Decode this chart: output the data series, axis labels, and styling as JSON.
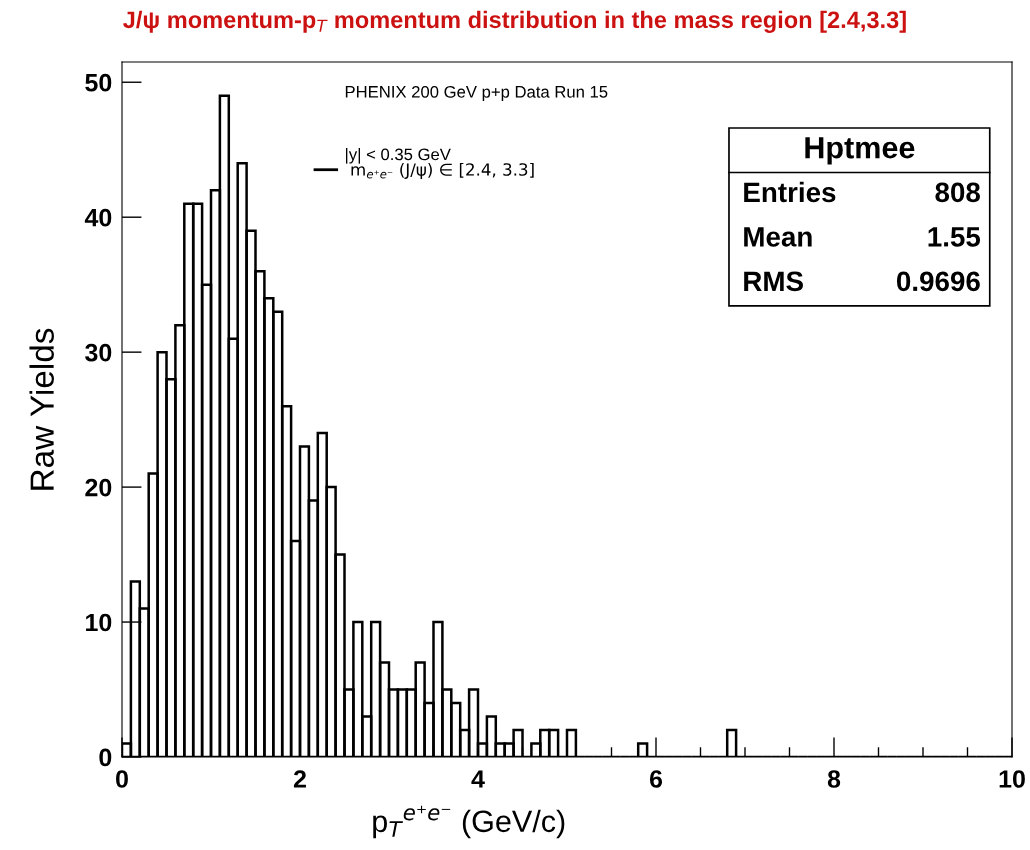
{
  "chart_data": {
    "type": "histogram",
    "title": "J/ψ momentum-p$_{T}$ momentum distribution in the mass region [2.4,3.3]",
    "xlabel": "p$_{T}$$^{e⁺e⁻}$ (GeV/c)",
    "ylabel": "Raw Yields",
    "bins": [
      0,
      0.1,
      0.2,
      0.3,
      0.4,
      0.5,
      0.6,
      0.7,
      0.8,
      0.9,
      1.0,
      1.1,
      1.2,
      1.3,
      1.4,
      1.5,
      1.6,
      1.7,
      1.8,
      1.9,
      2.0,
      2.1,
      2.2,
      2.3,
      2.4,
      2.5,
      2.6,
      2.7,
      2.8,
      2.9,
      3.0,
      3.1,
      3.2,
      3.3,
      3.4,
      3.5,
      3.6,
      3.7,
      3.8,
      3.9,
      4.0,
      4.1,
      4.2,
      4.3,
      4.4,
      4.5,
      4.6,
      4.7,
      4.8,
      4.9,
      5.0,
      5.1,
      5.2,
      5.3,
      5.4,
      5.5,
      5.6,
      5.7,
      5.8,
      5.9,
      6.0,
      6.1,
      6.2,
      6.3,
      6.4,
      6.5,
      6.6,
      6.7,
      6.8,
      6.9,
      7.0,
      7.1,
      7.2,
      7.3,
      7.4,
      7.5,
      7.6,
      7.7,
      7.8,
      7.9,
      8.0,
      8.1,
      8.2,
      8.3,
      8.4,
      8.5,
      8.6,
      8.7,
      8.8,
      8.9,
      9.0,
      9.1,
      9.2,
      9.3,
      9.4,
      9.5,
      9.6,
      9.7,
      9.8,
      9.9,
      10.0
    ],
    "series": [
      {
        "name": "m$_{e⁺e⁻}$ (J/ψ) ∈ [2.4, 3.3]",
        "color": "#000000",
        "values": [
          1,
          13,
          11,
          21,
          30,
          28,
          32,
          41,
          41,
          35,
          42,
          49,
          31,
          44,
          39,
          36,
          34,
          33,
          26,
          16,
          23,
          19,
          24,
          20,
          15,
          5,
          10,
          3,
          10,
          7,
          5,
          5,
          5,
          7,
          4,
          10,
          5,
          4,
          2,
          5,
          1,
          3,
          1,
          1,
          2,
          0,
          1,
          2,
          2,
          0,
          2,
          0,
          0,
          0,
          0,
          0,
          0,
          0,
          1,
          0,
          0,
          0,
          0,
          0,
          0,
          0,
          0,
          0,
          2,
          0,
          0,
          0,
          0,
          0,
          0,
          0,
          0,
          0,
          0,
          0,
          0,
          0,
          0,
          0,
          0,
          0,
          0,
          0,
          0,
          0,
          0,
          0,
          0,
          0,
          0,
          0,
          0,
          0,
          0,
          0
        ]
      }
    ],
    "xlim": [
      0,
      10
    ],
    "ylim": [
      0,
      51.5
    ],
    "xticks": [
      0,
      2,
      4,
      6,
      8,
      10
    ],
    "yticks": [
      0,
      10,
      20,
      30,
      40,
      50
    ],
    "legend": "top",
    "grid": false,
    "annotations": [
      "PHENIX 200 GeV p+p Data Run 15",
      "|y| < 0.35 GeV",
      "Hptmee",
      "Entries",
      "808",
      "Mean",
      "1.55",
      "RMS",
      "0.9696"
    ]
  }
}
